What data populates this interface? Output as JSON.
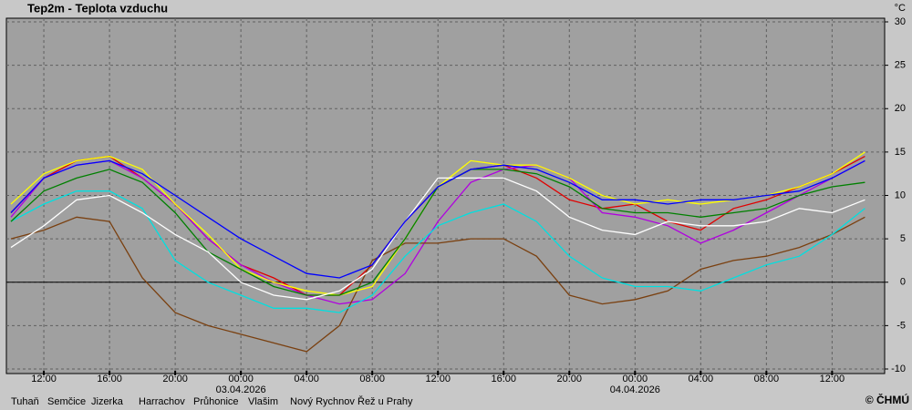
{
  "chart_data": {
    "type": "line",
    "title": "Tep2m - Teplota vzduchu",
    "unit_label": "°C",
    "copyright": "© ČHMÚ",
    "x": [
      10,
      12,
      14,
      16,
      18,
      20,
      22,
      24,
      26,
      28,
      30,
      32,
      34,
      36,
      38,
      40,
      42,
      44,
      46,
      48,
      50,
      52,
      54,
      56,
      58,
      60,
      62
    ],
    "xlim": [
      9.72,
      63.2
    ],
    "xticks": [
      {
        "value": 12,
        "label": "12:00"
      },
      {
        "value": 16,
        "label": "16:00"
      },
      {
        "value": 20,
        "label": "20:00"
      },
      {
        "value": 24,
        "label": "00:00"
      },
      {
        "value": 28,
        "label": "04:00"
      },
      {
        "value": 32,
        "label": "08:00"
      },
      {
        "value": 36,
        "label": "12:00"
      },
      {
        "value": 40,
        "label": "16:00"
      },
      {
        "value": 44,
        "label": "20:00"
      },
      {
        "value": 48,
        "label": "00:00"
      },
      {
        "value": 52,
        "label": "04:00"
      },
      {
        "value": 56,
        "label": "08:00"
      },
      {
        "value": 60,
        "label": "12:00"
      }
    ],
    "date_labels": [
      {
        "value": 24,
        "label": "03.04.2026"
      },
      {
        "value": 48,
        "label": "04.04.2026"
      }
    ],
    "ylim": [
      -10,
      30
    ],
    "yticks": [
      -10,
      -5,
      0,
      5,
      10,
      15,
      20,
      25,
      30
    ],
    "grid": true,
    "zero_line": true,
    "series": [
      {
        "name": "Tuhaň",
        "color": "#e00000",
        "values": [
          8,
          12,
          14,
          14.5,
          12,
          9,
          5,
          2,
          0.5,
          -1.5,
          -1.5,
          2,
          7,
          11,
          13,
          13.5,
          12,
          9.5,
          8.5,
          9,
          7,
          6,
          8.5,
          9.5,
          11,
          12.5,
          14.5
        ]
      },
      {
        "name": "Semčice",
        "color": "#b000e0",
        "values": [
          7.5,
          12,
          13.5,
          14,
          12,
          9,
          5,
          2,
          0,
          -1.5,
          -2.5,
          -2,
          1,
          7,
          11.5,
          13,
          13.5,
          12,
          8,
          7.5,
          6.5,
          4.5,
          6,
          8,
          10,
          12,
          14
        ]
      },
      {
        "name": "Jizerka",
        "color": "#7a4010",
        "values": [
          5,
          6,
          7.5,
          7,
          0.5,
          -3.5,
          -5,
          -6,
          -7,
          -8,
          -5,
          2.5,
          4.5,
          4.5,
          5,
          5,
          3,
          -1.5,
          -2.5,
          -2,
          -1,
          1.5,
          2.5,
          3,
          4,
          5.5,
          7.5
        ]
      },
      {
        "name": "Harrachov",
        "color": "#00e0e0",
        "values": [
          7,
          9,
          10.5,
          10.5,
          8.5,
          2.5,
          0,
          -1.5,
          -3,
          -3,
          -3.5,
          -1.5,
          3,
          6.5,
          8,
          9,
          7,
          3,
          0.5,
          -0.5,
          -0.5,
          -1,
          0.5,
          2,
          3,
          5.5,
          8.5
        ]
      },
      {
        "name": "Průhonice",
        "color": "#ffff00",
        "values": [
          9,
          12.5,
          14,
          14.5,
          13,
          9,
          5.5,
          1.5,
          0,
          -1,
          -1.5,
          -0.5,
          5,
          11,
          14,
          13.5,
          13.5,
          12,
          10,
          9,
          9.5,
          9,
          9.5,
          10,
          11,
          12.5,
          15
        ]
      },
      {
        "name": "Vlašim",
        "color": "#008000",
        "values": [
          7,
          10.5,
          12,
          13,
          11.5,
          8,
          3.5,
          1.5,
          -0.5,
          -1.5,
          -1.5,
          0,
          5,
          11,
          13,
          13,
          12.5,
          11,
          8.5,
          8,
          8,
          7.5,
          8,
          8.5,
          10,
          11,
          11.5
        ]
      },
      {
        "name": "Nový Rychnov",
        "color": "#ffffff",
        "values": [
          4,
          6.5,
          9.5,
          10,
          8,
          5.5,
          3.5,
          0,
          -1.5,
          -2,
          -1,
          1.5,
          7,
          12,
          12,
          12,
          10.5,
          7.5,
          6,
          5.5,
          7,
          6.5,
          6.5,
          7,
          8.5,
          8,
          9.5
        ]
      },
      {
        "name": "Řež u Prahy",
        "color": "#0000ff",
        "values": [
          8,
          12,
          13.5,
          14,
          12.5,
          10,
          7.5,
          5,
          3,
          1,
          0.5,
          2,
          7,
          11,
          13,
          13.5,
          13,
          11.5,
          9.5,
          9.5,
          9,
          9.5,
          9.5,
          10,
          10.5,
          12,
          14
        ]
      }
    ]
  }
}
